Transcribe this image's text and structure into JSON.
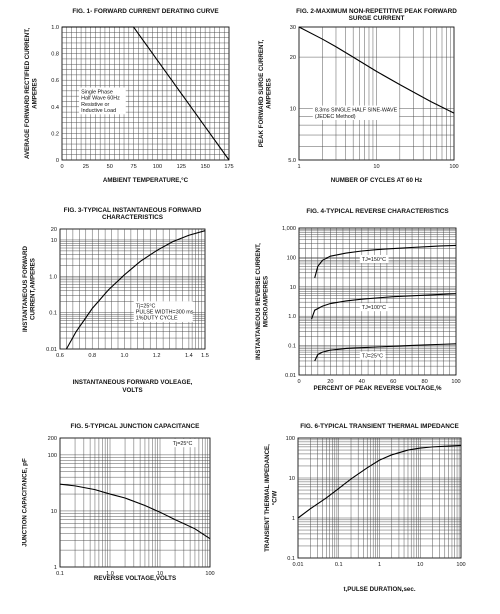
{
  "chart_data": [
    {
      "type": "line",
      "title_lines": [
        "FIG. 1- FORWARD CURRENT DERATING CURVE"
      ],
      "xlabel": "AMBIENT TEMPERATURE,°C",
      "ylabel_lines": [
        "AVERAGE FORWARD RECTIFIED CURRENT,",
        "AMPERES"
      ],
      "xscale": "linear",
      "yscale": "linear",
      "xlim": [
        0,
        175
      ],
      "ylim": [
        0,
        1.0
      ],
      "xticks": [
        0,
        25,
        50,
        75,
        100,
        125,
        150,
        175
      ],
      "xtick_labels": [
        "0",
        "25",
        "50",
        "75",
        "100",
        "125",
        "150",
        "175"
      ],
      "yticks": [
        0,
        0.2,
        0.4,
        0.6,
        0.8,
        1.0
      ],
      "ytick_labels": [
        "0",
        "0.2",
        "0.4",
        "0.6",
        "0.8",
        "1.0"
      ],
      "grid": true,
      "series": [
        {
          "x": [
            0,
            75,
            175
          ],
          "y": [
            1.0,
            1.0,
            0
          ]
        }
      ],
      "annotation": {
        "lines": [
          "Single Phase",
          "Half Wave 60Hz",
          "Resistive or",
          "Inductive Load"
        ],
        "x": 20,
        "y": 0.5
      }
    },
    {
      "type": "line",
      "title_lines": [
        "FIG. 2-MAXIMUM NON-REPETITIVE PEAK FORWARD",
        "SURGE CURRENT"
      ],
      "xlabel": "NUMBER OF CYCLES AT 60 Hz",
      "ylabel_lines": [
        "PEAK FORWARD SURGE CURRENT,",
        "AMPERES"
      ],
      "xscale": "log",
      "yscale": "log",
      "xlim": [
        1,
        100
      ],
      "ylim": [
        5,
        30
      ],
      "xticks": [
        1,
        10,
        100
      ],
      "xtick_labels": [
        "1",
        "10",
        "100"
      ],
      "yticks": [
        5,
        10,
        20,
        30
      ],
      "ytick_labels": [
        "5.0",
        "10",
        "20",
        "30"
      ],
      "grid": true,
      "series": [
        {
          "x": [
            1,
            2,
            3,
            5,
            10,
            20,
            50,
            100
          ],
          "y": [
            30,
            25.5,
            23,
            20,
            16.5,
            13.8,
            11,
            9.4
          ]
        }
      ],
      "annotation": {
        "lines": [
          "8.3ms SINGLE HALF SINE-WAVE",
          "(JEDEC Method)"
        ],
        "x": 1.6,
        "y": 9.6
      }
    },
    {
      "type": "line",
      "title_lines": [
        "FIG. 3-TYPICAL INSTANTANEOUS FORWARD",
        "CHARACTERISTICS"
      ],
      "xlabel_lines": [
        "INSTANTANEOUS FORWARD VOLEAGE,",
        "VOLTS"
      ],
      "ylabel_lines": [
        "INSTANTANEOUS FORWARD",
        "CURRENT,AMPERES"
      ],
      "xscale": "linear",
      "yscale": "log",
      "xlim": [
        0.6,
        1.5
      ],
      "ylim": [
        0.01,
        20
      ],
      "xticks": [
        0.6,
        0.8,
        1.0,
        1.2,
        1.4,
        1.5
      ],
      "xtick_labels": [
        "0.6",
        "0.8",
        "1.0",
        "1.2",
        "1.4",
        "1.5"
      ],
      "yticks": [
        0.01,
        0.1,
        1,
        10,
        20
      ],
      "ytick_labels": [
        "0.01",
        "0.1",
        "1.0",
        "10",
        "20"
      ],
      "grid": true,
      "series": [
        {
          "x": [
            0.64,
            0.7,
            0.8,
            0.9,
            1.0,
            1.1,
            1.2,
            1.3,
            1.4,
            1.5
          ],
          "y": [
            0.01,
            0.03,
            0.13,
            0.42,
            1.1,
            2.6,
            5.1,
            9.0,
            13.5,
            18
          ]
        }
      ],
      "annotation": {
        "lines": [
          "Tj=25°C",
          "PULSE WIDTH=300 ms",
          "1%DUTY CYCLE"
        ],
        "x": 1.07,
        "y": 0.14
      }
    },
    {
      "type": "line",
      "title_lines": [
        "FIG. 4-TYPICAL REVERSE CHARACTERISTICS"
      ],
      "xlabel": "PERCENT OF PEAK REVERSE VOLTAGE,%",
      "ylabel_lines": [
        "INSTANTANEOUS REVERSE CURRENT,",
        "MICROAMPERES"
      ],
      "xscale": "linear",
      "yscale": "log",
      "xlim": [
        0,
        100
      ],
      "ylim": [
        0.01,
        1000
      ],
      "xticks": [
        0,
        20,
        40,
        60,
        80,
        100
      ],
      "xtick_labels": [
        "0",
        "20",
        "40",
        "60",
        "80",
        "100"
      ],
      "yticks": [
        0.01,
        0.1,
        1,
        10,
        100,
        1000
      ],
      "ytick_labels": [
        "0.01",
        "0.1",
        "1.0",
        "10",
        "100",
        "1,000"
      ],
      "grid": true,
      "series": [
        {
          "name": "TJ=150°C",
          "x": [
            10,
            12,
            15,
            20,
            30,
            40,
            50,
            60,
            70,
            80,
            90,
            100
          ],
          "y": [
            20,
            50,
            80,
            110,
            140,
            165,
            185,
            200,
            215,
            230,
            245,
            255
          ]
        },
        {
          "name": "TJ=100°C",
          "x": [
            8,
            10,
            15,
            20,
            30,
            40,
            50,
            60,
            70,
            80,
            90,
            100
          ],
          "y": [
            0.8,
            1.6,
            2.2,
            2.7,
            3.3,
            3.8,
            4.2,
            4.6,
            4.9,
            5.2,
            5.5,
            5.8
          ]
        },
        {
          "name": "TJ=25°C",
          "x": [
            10,
            12,
            15,
            20,
            30,
            40,
            50,
            60,
            70,
            80,
            90,
            100
          ],
          "y": [
            0.03,
            0.05,
            0.06,
            0.07,
            0.08,
            0.085,
            0.09,
            0.095,
            0.1,
            0.105,
            0.11,
            0.115
          ]
        }
      ]
    },
    {
      "type": "line",
      "title_lines": [
        "FIG. 5-TYPICAL JUNCTION CAPACITANCE"
      ],
      "xlabel": "REVERSE VOLTAGE,VOLTS",
      "ylabel_lines": [
        "JUNCTION CAPACITANCE, pF"
      ],
      "xscale": "log",
      "yscale": "log",
      "xlim": [
        0.1,
        100
      ],
      "ylim": [
        1,
        200
      ],
      "xticks": [
        0.1,
        1,
        10,
        100
      ],
      "xtick_labels": [
        "0.1",
        "1.0",
        "10",
        "100"
      ],
      "yticks": [
        1,
        10,
        100,
        200
      ],
      "ytick_labels": [
        "1",
        "10",
        "100",
        "200"
      ],
      "grid": true,
      "series": [
        {
          "x": [
            0.1,
            0.2,
            0.5,
            1,
            2,
            5,
            10,
            20,
            50,
            100
          ],
          "y": [
            30,
            28,
            24,
            20,
            17,
            12.5,
            9.5,
            7,
            4.8,
            3.2
          ]
        }
      ],
      "annotation": {
        "lines": [
          "Tj=25°C"
        ],
        "x": 18,
        "y": 150
      }
    },
    {
      "type": "line",
      "title_lines": [
        "FIG. 6-TYPICAL TRANSIENT THERMAL IMPEDANCE"
      ],
      "xlabel": "t,PULSE DURATION,sec.",
      "ylabel_lines": [
        "TRANSIENT THERMAL IMPEDANCE,",
        "°C/W"
      ],
      "xscale": "log",
      "yscale": "log",
      "xlim": [
        0.01,
        100
      ],
      "ylim": [
        0.1,
        100
      ],
      "xticks": [
        0.01,
        0.1,
        1,
        10,
        100
      ],
      "xtick_labels": [
        "0.01",
        "0.1",
        "1",
        "10",
        "100"
      ],
      "yticks": [
        0.1,
        1,
        10,
        100
      ],
      "ytick_labels": [
        "0.1",
        "1",
        "10",
        "100"
      ],
      "grid": true,
      "series": [
        {
          "x": [
            0.01,
            0.02,
            0.05,
            0.1,
            0.2,
            0.5,
            1,
            2,
            5,
            10,
            20,
            50,
            100
          ],
          "y": [
            1.0,
            1.7,
            3.2,
            5.5,
            9.5,
            18,
            28,
            38,
            50,
            56,
            60,
            63,
            65
          ]
        }
      ]
    }
  ]
}
